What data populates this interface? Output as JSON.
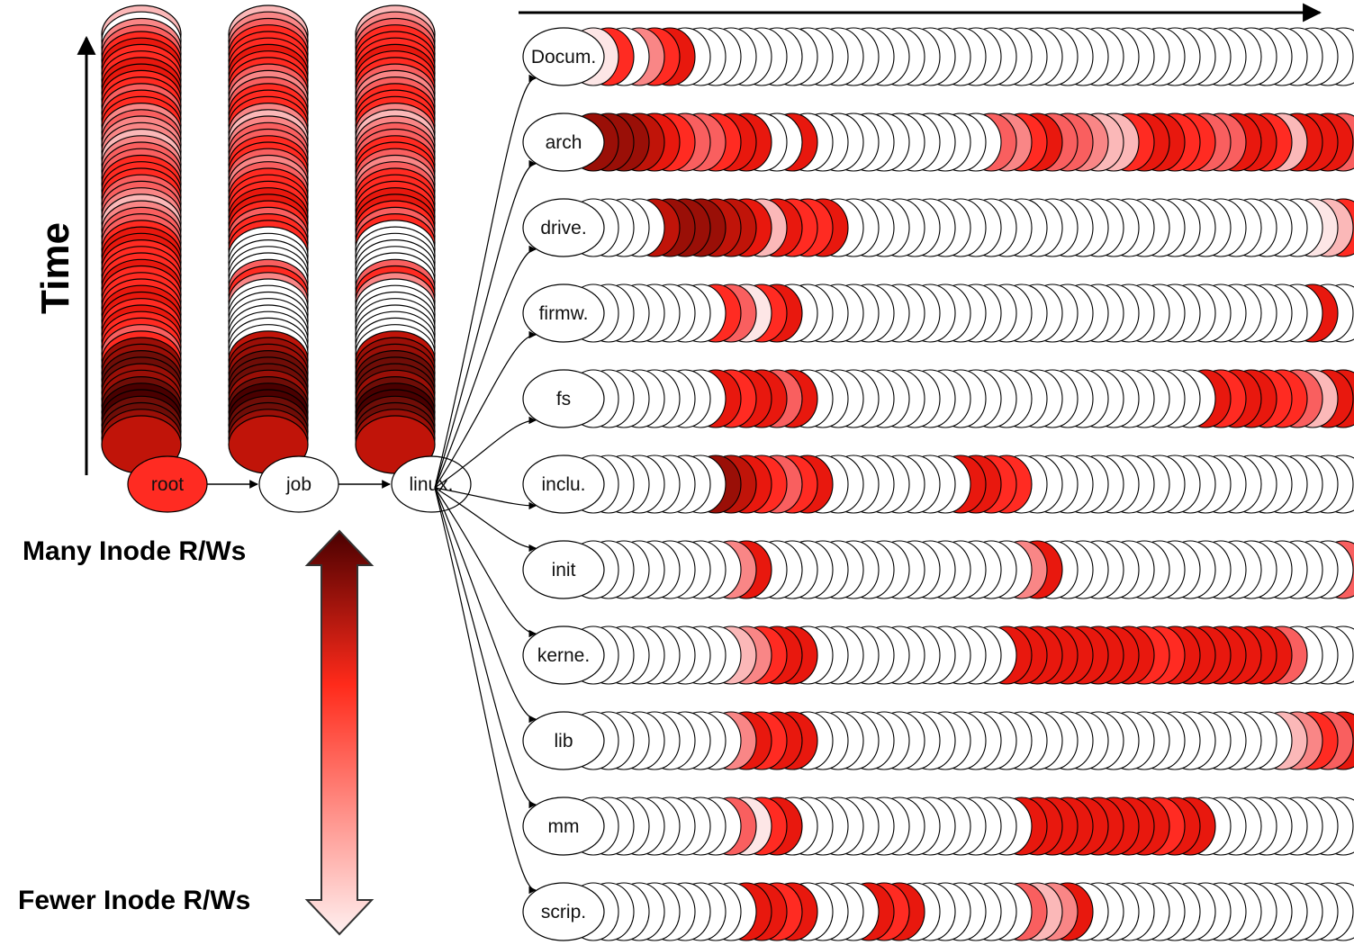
{
  "time_axis_label": "Time",
  "legend": {
    "top_label": "Many Inode R/Ws",
    "bottom_label": "Fewer Inode R/Ws",
    "gradient_colors": [
      "#4a0000",
      "#ff2a1a",
      "#fff0f0"
    ]
  },
  "palette": [
    "#ffffff",
    "#fde6e6",
    "#fbb8b8",
    "#f98686",
    "#f95f5f",
    "#ff2b22",
    "#e8180e",
    "#c01409",
    "#9a0f07",
    "#6f0d07",
    "#4a0000"
  ],
  "chain": [
    {
      "label": "root",
      "fill_level": 5,
      "history": [
        2,
        0,
        3,
        4,
        5,
        6,
        5,
        5,
        6,
        6,
        5,
        5,
        4,
        5,
        5,
        3,
        4,
        3,
        3,
        2,
        3,
        4,
        4,
        5,
        5,
        5,
        4,
        4,
        3,
        2,
        3,
        4,
        4,
        5,
        6,
        6,
        5,
        5,
        5,
        6,
        5,
        5,
        5,
        6,
        6,
        5,
        6,
        5,
        5,
        4,
        5,
        8,
        8,
        9,
        9,
        8,
        8,
        9,
        10,
        10,
        9,
        9,
        8,
        7
      ]
    },
    {
      "label": "job",
      "fill_level": 0,
      "history": [
        2,
        3,
        4,
        5,
        5,
        5,
        6,
        5,
        5,
        4,
        3,
        4,
        5,
        5,
        5,
        3,
        2,
        3,
        4,
        4,
        5,
        5,
        4,
        3,
        4,
        5,
        5,
        5,
        6,
        6,
        5,
        4,
        5,
        5,
        0,
        0,
        0,
        0,
        0,
        4,
        5,
        3,
        0,
        0,
        0,
        0,
        0,
        0,
        0,
        0,
        7,
        8,
        8,
        9,
        9,
        9,
        8,
        9,
        10,
        10,
        9,
        9,
        8,
        7
      ]
    },
    {
      "label": "linux.",
      "fill_level": 0,
      "history": [
        2,
        3,
        4,
        5,
        5,
        5,
        6,
        5,
        5,
        4,
        3,
        4,
        5,
        5,
        5,
        3,
        2,
        3,
        4,
        4,
        5,
        5,
        4,
        3,
        4,
        5,
        5,
        5,
        6,
        6,
        5,
        4,
        5,
        0,
        0,
        0,
        0,
        0,
        0,
        4,
        5,
        3,
        0,
        0,
        0,
        0,
        0,
        0,
        0,
        0,
        7,
        8,
        8,
        9,
        9,
        9,
        8,
        9,
        10,
        10,
        9,
        9,
        8,
        7
      ]
    }
  ],
  "directories": [
    {
      "label": "Docum.",
      "activity": [
        {
          "start": 0,
          "levels": [
            1,
            5,
            0,
            3,
            5,
            6
          ]
        }
      ]
    },
    {
      "label": "arch",
      "activity": [
        {
          "start": 0,
          "levels": [
            8,
            8,
            8,
            7,
            6,
            5,
            4,
            4,
            5,
            6,
            6,
            0,
            0,
            6
          ]
        },
        {
          "start": 26,
          "levels": [
            4,
            3,
            5,
            6,
            4,
            4,
            3,
            2,
            2,
            5,
            6,
            6,
            5,
            5,
            4,
            4,
            6,
            6,
            5,
            2,
            6,
            6,
            6,
            4,
            4,
            6
          ]
        }
      ]
    },
    {
      "label": "drive.",
      "activity": [
        {
          "start": 4,
          "levels": [
            7,
            8,
            8,
            8,
            7,
            7,
            6,
            2,
            6,
            5,
            5,
            6
          ]
        },
        {
          "start": 47,
          "levels": [
            1,
            2,
            5,
            6,
            4,
            6
          ]
        }
      ]
    },
    {
      "label": "firmw.",
      "activity": [
        {
          "start": 8,
          "levels": [
            5,
            4,
            1,
            5,
            6
          ]
        },
        {
          "start": 47,
          "levels": [
            6
          ]
        }
      ]
    },
    {
      "label": "fs",
      "activity": [
        {
          "start": 8,
          "levels": [
            6,
            5,
            6,
            6,
            4,
            6
          ]
        },
        {
          "start": 40,
          "levels": [
            6,
            5,
            6,
            6,
            5,
            5,
            4,
            2,
            6,
            6
          ]
        }
      ]
    },
    {
      "label": "inclu.",
      "activity": [
        {
          "start": 8,
          "levels": [
            8,
            7,
            6,
            5,
            4,
            5,
            6
          ]
        },
        {
          "start": 24,
          "levels": [
            6,
            6,
            5,
            5
          ]
        }
      ]
    },
    {
      "label": "init",
      "activity": [
        {
          "start": 9,
          "levels": [
            3,
            6
          ]
        },
        {
          "start": 28,
          "levels": [
            3,
            6
          ]
        },
        {
          "start": 49,
          "levels": [
            4
          ]
        }
      ]
    },
    {
      "label": "kerne.",
      "activity": [
        {
          "start": 9,
          "levels": [
            2,
            3,
            5,
            6,
            6
          ]
        },
        {
          "start": 27,
          "levels": [
            6,
            6,
            6,
            6,
            6,
            6,
            6,
            6,
            6,
            5,
            5,
            6,
            6,
            6,
            6,
            6,
            6,
            6,
            4
          ]
        }
      ]
    },
    {
      "label": "lib",
      "activity": [
        {
          "start": 9,
          "levels": [
            3,
            6,
            5,
            6,
            6
          ]
        },
        {
          "start": 45,
          "levels": [
            2,
            3,
            5,
            4,
            6,
            6
          ]
        }
      ]
    },
    {
      "label": "mm",
      "activity": [
        {
          "start": 9,
          "levels": [
            4,
            1,
            5,
            6
          ]
        },
        {
          "start": 28,
          "levels": [
            6,
            6,
            6,
            6,
            6,
            6,
            6,
            6,
            6,
            5,
            6,
            6
          ]
        }
      ]
    },
    {
      "label": "scrip.",
      "activity": [
        {
          "start": 10,
          "levels": [
            6,
            6,
            5,
            6
          ]
        },
        {
          "start": 18,
          "levels": [
            6,
            5,
            6
          ]
        },
        {
          "start": 28,
          "levels": [
            4,
            2,
            3,
            6
          ]
        }
      ]
    }
  ]
}
